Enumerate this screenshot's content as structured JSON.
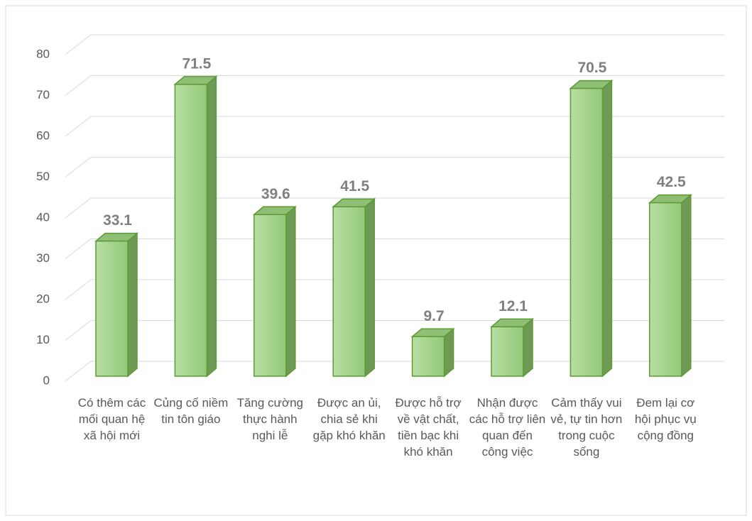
{
  "chart_data": {
    "type": "bar3d",
    "categories": [
      "Có thêm các mối quan hệ xã hội mới",
      "Củng cố niềm tin tôn giáo",
      "Tăng cường thực hành nghi lễ",
      "Được an ủi, chia sẻ khi gặp khó khăn",
      "Được hỗ trợ về vật chất, tiền bạc khi khó khăn",
      "Nhận được các hỗ trợ liên quan đến công việc",
      "Cảm thấy vui vẻ, tự tin hơn trong cuộc sống",
      "Đem lại cơ hội phục vụ cộng đồng"
    ],
    "values": [
      33.1,
      71.5,
      39.6,
      41.5,
      9.7,
      12.1,
      70.5,
      42.5
    ],
    "color": "#a9d58f",
    "ylim": [
      0,
      80
    ],
    "yticks": [
      0,
      10,
      20,
      30,
      40,
      50,
      60,
      70,
      80
    ],
    "grid": true
  }
}
